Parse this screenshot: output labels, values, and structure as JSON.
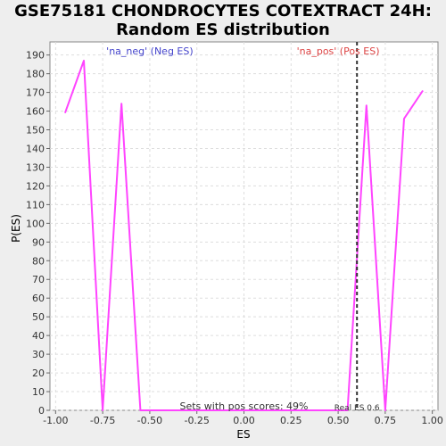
{
  "chart_data": {
    "type": "line",
    "title_line1": "GSE75181 CHONDROCYTES COTEXTRACT 24H:",
    "title_line2": "Random ES distribution",
    "xlabel": "ES",
    "ylabel": "P(ES)",
    "xlim": [
      -1.03,
      1.03
    ],
    "ylim": [
      0,
      197
    ],
    "xticks": [
      -1.0,
      -0.75,
      -0.5,
      -0.25,
      0.0,
      0.25,
      0.5,
      0.75,
      1.0
    ],
    "xtick_labels": [
      "-1.00",
      "-0.75",
      "-0.50",
      "-0.25",
      "0.00",
      "0.25",
      "0.50",
      "0.75",
      "1.00"
    ],
    "yticks": [
      0,
      10,
      20,
      30,
      40,
      50,
      60,
      70,
      80,
      90,
      100,
      110,
      120,
      130,
      140,
      150,
      160,
      170,
      180,
      190
    ],
    "grid": true,
    "series": [
      {
        "color": "#ff44ff",
        "x": [
          -0.95,
          -0.85,
          -0.75,
          -0.65,
          -0.55,
          -0.45,
          -0.35,
          -0.25,
          -0.15,
          -0.05,
          0.05,
          0.15,
          0.25,
          0.35,
          0.45,
          0.55,
          0.65,
          0.75,
          0.85,
          0.95
        ],
        "y": [
          159,
          187,
          0,
          164,
          0,
          0,
          0,
          0,
          0,
          0,
          0,
          0,
          0,
          0,
          0,
          0,
          163,
          0,
          156,
          171
        ]
      }
    ],
    "real_es": 0.6,
    "real_es_label": "Real ES 0.6",
    "neg_label": "'na_neg' (Neg ES)",
    "pos_label": "'na_pos' (Pos ES)",
    "neg_color": "#4444cc",
    "pos_color": "#dd4444",
    "sets_label": "Sets with pos scores: 49%"
  }
}
